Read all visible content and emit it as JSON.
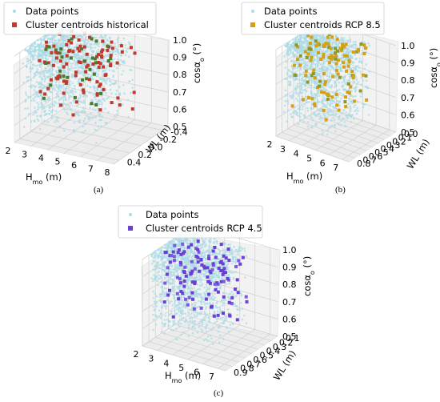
{
  "chart_data": [
    {
      "type": "scatter",
      "panel_label": "(a)",
      "legend": {
        "placement": "top-left",
        "data_label": "Data points",
        "centroid_label": "Cluster centroids historical"
      },
      "xlabel": "H_mo (m)",
      "ylabel": "WL (m)",
      "zlabel": "cosα_o (°)",
      "xticks": [
        "2",
        "3",
        "4",
        "5",
        "6",
        "7",
        "8"
      ],
      "yticks": [
        "-0.4",
        "-0.2",
        "0.0",
        "0.2",
        "0.4"
      ],
      "zticks": [
        "0.5",
        "0.6",
        "0.7",
        "0.8",
        "0.9",
        "1.0"
      ],
      "xlim": [
        2,
        8
      ],
      "ylim": [
        -0.5,
        0.5
      ],
      "zlim": [
        0.5,
        1.0
      ],
      "colors": {
        "data": "#a8dbe6",
        "centroid": "#c0392b",
        "centroid_alt": "#4a7a2a"
      }
    },
    {
      "type": "scatter",
      "panel_label": "(b)",
      "legend": {
        "placement": "top-left",
        "data_label": "Data points",
        "centroid_label": "Cluster centroids RCP 8.5"
      },
      "xlabel": "H_mo (m)",
      "ylabel": "WL (m)",
      "zlabel": "cosα_o (°)",
      "xticks": [
        "2",
        "3",
        "4",
        "5",
        "6",
        "7"
      ],
      "yticks": [
        "0.0",
        "0.1",
        "0.2",
        "0.3",
        "0.4",
        "0.5",
        "0.6",
        "0.7",
        "0.8"
      ],
      "zticks": [
        "0.5",
        "0.6",
        "0.7",
        "0.8",
        "0.9",
        "1.0"
      ],
      "xlim": [
        2,
        7.5
      ],
      "ylim": [
        0.0,
        0.8
      ],
      "zlim": [
        0.5,
        1.0
      ],
      "colors": {
        "data": "#a8dbe6",
        "centroid": "#d4a017",
        "centroid_alt": "#8a9a2a"
      }
    },
    {
      "type": "scatter",
      "panel_label": "(c)",
      "legend": {
        "placement": "top-left",
        "data_label": "Data points",
        "centroid_label": "Cluster centroids RCP 4.5"
      },
      "xlabel": "H_mo (m)",
      "ylabel": "WL (m)",
      "zlabel": "cosα_o (°)",
      "xticks": [
        "2",
        "3",
        "4",
        "5",
        "6",
        "7"
      ],
      "yticks": [
        "0.1",
        "0.2",
        "0.3",
        "0.4",
        "0.5",
        "0.6",
        "0.7",
        "0.8",
        "0.9"
      ],
      "zticks": [
        "0.5",
        "0.6",
        "0.7",
        "0.8",
        "0.9",
        "1.0"
      ],
      "xlim": [
        2,
        7.5
      ],
      "ylim": [
        0.1,
        0.9
      ],
      "zlim": [
        0.5,
        1.0
      ],
      "colors": {
        "data": "#a8dbe6",
        "centroid": "#6a3fd6",
        "centroid_alt": "#7a5ae0"
      }
    }
  ]
}
